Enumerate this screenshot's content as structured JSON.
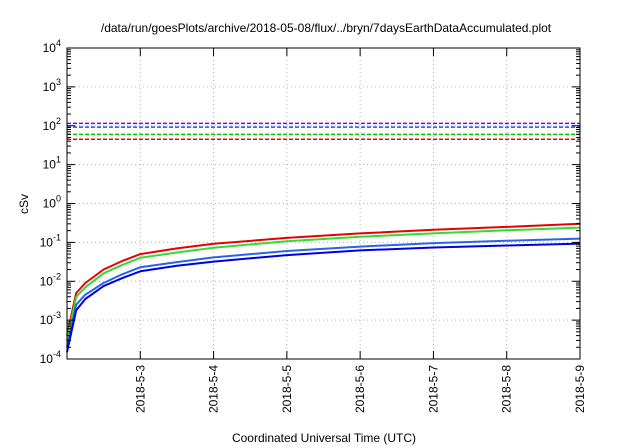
{
  "chart_data": {
    "type": "line",
    "title": "/data/run/goesPlots/archive/2018-05-08/flux/../bryn/7daysEarthDataAccumulated.plot",
    "xlabel": "Coordinated Universal Time (UTC)",
    "ylabel": "cSv",
    "x_tick_labels": [
      "2018-5-3",
      "2018-5-4",
      "2018-5-5",
      "2018-5-6",
      "2018-5-7",
      "2018-5-8",
      "2018-5-9"
    ],
    "xlim": [
      "2018-05-02T00:00",
      "2018-05-09T00:00"
    ],
    "y_scale": "log",
    "ylim": [
      0.0001,
      10000
    ],
    "y_ticks": [
      {
        "base": "10",
        "exp": "-4",
        "value": 0.0001
      },
      {
        "base": "10",
        "exp": "-3",
        "value": 0.001
      },
      {
        "base": "10",
        "exp": "-2",
        "value": 0.01
      },
      {
        "base": "10",
        "exp": "-1",
        "value": 0.1
      },
      {
        "base": "10",
        "exp": "0",
        "value": 1
      },
      {
        "base": "10",
        "exp": "1",
        "value": 10
      },
      {
        "base": "10",
        "exp": "2",
        "value": 100
      },
      {
        "base": "10",
        "exp": "3",
        "value": 1000
      },
      {
        "base": "10",
        "exp": "4",
        "value": 10000
      }
    ],
    "grid": true,
    "thresholds": [
      {
        "color": "#9400d3",
        "style": "dashed",
        "y": 115
      },
      {
        "color": "#1e50ff",
        "style": "dashed",
        "y": 92
      },
      {
        "color": "#00c800",
        "style": "dashed",
        "y": 60
      },
      {
        "color": "#ff0000",
        "style": "dashed",
        "y": 45
      }
    ],
    "series": [
      {
        "color": "#e60000",
        "x": [
          "2018-05-02T00:00",
          "2018-05-02T03:00",
          "2018-05-02T06:00",
          "2018-05-02T12:00",
          "2018-05-02T18:00",
          "2018-05-03T00:00",
          "2018-05-03T12:00",
          "2018-05-04T00:00",
          "2018-05-05T00:00",
          "2018-05-06T00:00",
          "2018-05-07T00:00",
          "2018-05-08T00:00",
          "2018-05-09T00:00"
        ],
        "y": [
          0.0004,
          0.005,
          0.009,
          0.02,
          0.033,
          0.05,
          0.07,
          0.092,
          0.13,
          0.17,
          0.21,
          0.25,
          0.3
        ]
      },
      {
        "color": "#32dc32",
        "x": [
          "2018-05-02T00:00",
          "2018-05-02T03:00",
          "2018-05-02T06:00",
          "2018-05-02T12:00",
          "2018-05-02T18:00",
          "2018-05-03T00:00",
          "2018-05-03T12:00",
          "2018-05-04T00:00",
          "2018-05-05T00:00",
          "2018-05-06T00:00",
          "2018-05-07T00:00",
          "2018-05-08T00:00",
          "2018-05-09T00:00"
        ],
        "y": [
          0.0003,
          0.004,
          0.007,
          0.016,
          0.026,
          0.04,
          0.055,
          0.073,
          0.107,
          0.14,
          0.17,
          0.205,
          0.24
        ]
      },
      {
        "color": "#2864e6",
        "x": [
          "2018-05-02T00:00",
          "2018-05-02T03:00",
          "2018-05-02T06:00",
          "2018-05-02T12:00",
          "2018-05-02T18:00",
          "2018-05-03T00:00",
          "2018-05-03T12:00",
          "2018-05-04T00:00",
          "2018-05-05T00:00",
          "2018-05-06T00:00",
          "2018-05-07T00:00",
          "2018-05-08T00:00",
          "2018-05-09T00:00"
        ],
        "y": [
          0.0002,
          0.0025,
          0.0045,
          0.009,
          0.015,
          0.023,
          0.031,
          0.041,
          0.06,
          0.078,
          0.096,
          0.11,
          0.125
        ]
      },
      {
        "color": "#0000e6",
        "x": [
          "2018-05-02T00:00",
          "2018-05-02T03:00",
          "2018-05-02T06:00",
          "2018-05-02T12:00",
          "2018-05-02T18:00",
          "2018-05-03T00:00",
          "2018-05-03T12:00",
          "2018-05-04T00:00",
          "2018-05-05T00:00",
          "2018-05-06T00:00",
          "2018-05-07T00:00",
          "2018-05-08T00:00",
          "2018-05-09T00:00"
        ],
        "y": [
          0.00015,
          0.0018,
          0.0035,
          0.0075,
          0.012,
          0.018,
          0.025,
          0.032,
          0.047,
          0.062,
          0.074,
          0.083,
          0.093
        ]
      }
    ]
  }
}
